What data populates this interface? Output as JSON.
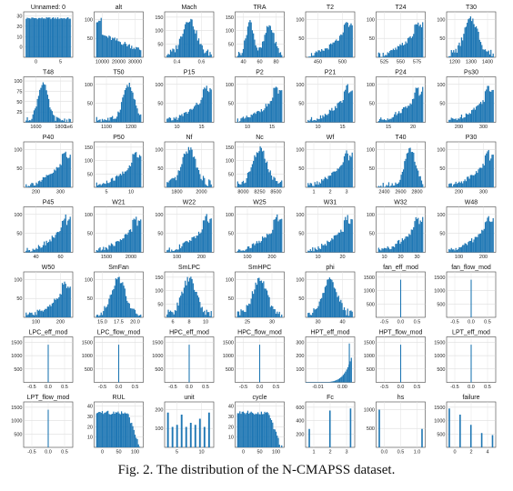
{
  "figure": {
    "caption": "Fig. 2. The distribution of the N-CMAPSS dataset.",
    "bar_color": "#1f77b4",
    "grid_on": true
  },
  "chart_data": [
    {
      "type": "bar",
      "title": "Unnamed: 0",
      "xticks": [
        "0",
        "5"
      ],
      "yticks": [
        "0",
        "10",
        "20",
        "30"
      ],
      "profile": "uniform"
    },
    {
      "type": "bar",
      "title": "alt",
      "xticks": [
        "10000",
        "20000",
        "30000"
      ],
      "yticks": [
        "50",
        "100"
      ],
      "profile": "decreasing"
    },
    {
      "type": "bar",
      "title": "Mach",
      "xticks": [
        "0.4",
        "0.6"
      ],
      "yticks": [
        "50",
        "100",
        "150"
      ],
      "profile": "mound"
    },
    {
      "type": "bar",
      "title": "TRA",
      "xticks": [
        "40",
        "60",
        "80"
      ],
      "yticks": [
        "50",
        "100",
        "150"
      ],
      "profile": "bimodal"
    },
    {
      "type": "bar",
      "title": "T2",
      "xticks": [
        "450",
        "500"
      ],
      "yticks": [
        "50",
        "100"
      ],
      "profile": "right_ramp"
    },
    {
      "type": "bar",
      "title": "T24",
      "xticks": [
        "525",
        "550",
        "575"
      ],
      "yticks": [
        "50",
        "100"
      ],
      "profile": "right_ramp"
    },
    {
      "type": "bar",
      "title": "T30",
      "xticks": [
        "1200",
        "1300",
        "1400"
      ],
      "yticks": [
        "50",
        "100"
      ],
      "profile": "mound"
    },
    {
      "type": "bar",
      "title": "T48",
      "sub": "1e6",
      "xticks": [
        "1600",
        "1800"
      ],
      "yticks": [
        "25",
        "50",
        "75",
        "100"
      ],
      "profile": "left_skew_peak"
    },
    {
      "type": "bar",
      "title": "T50",
      "xticks": [
        "1100",
        "1200"
      ],
      "yticks": [
        "50",
        "100"
      ],
      "profile": "right_skew"
    },
    {
      "type": "bar",
      "title": "P15",
      "xticks": [
        "10",
        "15"
      ],
      "yticks": [
        "50",
        "100"
      ],
      "profile": "right_ramp"
    },
    {
      "type": "bar",
      "title": "P2",
      "xticks": [
        "10",
        "15"
      ],
      "yticks": [
        "50",
        "100"
      ],
      "profile": "right_ramp"
    },
    {
      "type": "bar",
      "title": "P21",
      "xticks": [
        "10",
        "15"
      ],
      "yticks": [
        "50",
        "100"
      ],
      "profile": "right_ramp"
    },
    {
      "type": "bar",
      "title": "P24",
      "xticks": [
        "15",
        "20"
      ],
      "yticks": [
        "50",
        "100"
      ],
      "profile": "right_ramp"
    },
    {
      "type": "bar",
      "title": "Ps30",
      "xticks": [
        "200",
        "300"
      ],
      "yticks": [
        "50",
        "100"
      ],
      "profile": "right_ramp"
    },
    {
      "type": "bar",
      "title": "P40",
      "xticks": [
        "200",
        "300"
      ],
      "yticks": [
        "50",
        "100"
      ],
      "profile": "right_ramp"
    },
    {
      "type": "bar",
      "title": "P50",
      "xticks": [
        "5",
        "10"
      ],
      "yticks": [
        "50",
        "100",
        "150"
      ],
      "profile": "right_ramp"
    },
    {
      "type": "bar",
      "title": "Nf",
      "xticks": [
        "1800",
        "2000"
      ],
      "yticks": [
        "50",
        "100"
      ],
      "profile": "mound"
    },
    {
      "type": "bar",
      "title": "Nc",
      "xticks": [
        "8000",
        "8250",
        "8500"
      ],
      "yticks": [
        "50",
        "100",
        "150"
      ],
      "profile": "mound"
    },
    {
      "type": "bar",
      "title": "Wf",
      "xticks": [
        "1",
        "2",
        "3"
      ],
      "yticks": [
        "50",
        "100"
      ],
      "profile": "right_ramp"
    },
    {
      "type": "bar",
      "title": "T40",
      "xticks": [
        "2400",
        "2600",
        "2800"
      ],
      "yticks": [
        "50",
        "100"
      ],
      "profile": "right_skew"
    },
    {
      "type": "bar",
      "title": "P30",
      "xticks": [
        "200",
        "300"
      ],
      "yticks": [
        "50",
        "100"
      ],
      "profile": "right_ramp"
    },
    {
      "type": "bar",
      "title": "P45",
      "xticks": [
        "40",
        "60"
      ],
      "yticks": [
        "50",
        "100"
      ],
      "profile": "right_ramp"
    },
    {
      "type": "bar",
      "title": "W21",
      "xticks": [
        "1500",
        "2000"
      ],
      "yticks": [
        "50",
        "100"
      ],
      "profile": "right_ramp"
    },
    {
      "type": "bar",
      "title": "W22",
      "xticks": [
        "100",
        "200"
      ],
      "yticks": [
        "50",
        "100"
      ],
      "profile": "right_ramp"
    },
    {
      "type": "bar",
      "title": "W25",
      "xticks": [
        "100",
        "200"
      ],
      "yticks": [
        "50",
        "100"
      ],
      "profile": "right_ramp"
    },
    {
      "type": "bar",
      "title": "W31",
      "xticks": [
        "10",
        "20"
      ],
      "yticks": [
        "50",
        "100"
      ],
      "profile": "right_ramp"
    },
    {
      "type": "bar",
      "title": "W32",
      "xticks": [
        "10",
        "20",
        "30"
      ],
      "yticks": [
        "50",
        "100"
      ],
      "profile": "right_ramp"
    },
    {
      "type": "bar",
      "title": "W48",
      "xticks": [
        "100",
        "200"
      ],
      "yticks": [
        "50",
        "100"
      ],
      "profile": "right_ramp"
    },
    {
      "type": "bar",
      "title": "W50",
      "xticks": [
        "100",
        "200"
      ],
      "yticks": [
        "50",
        "100"
      ],
      "profile": "right_ramp"
    },
    {
      "type": "bar",
      "title": "SmFan",
      "xticks": [
        "15.0",
        "17.5",
        "20.0"
      ],
      "yticks": [
        "50",
        "100"
      ],
      "profile": "mound"
    },
    {
      "type": "bar",
      "title": "SmLPC",
      "xticks": [
        "6",
        "8",
        "10"
      ],
      "yticks": [
        "50",
        "100",
        "150"
      ],
      "profile": "mound"
    },
    {
      "type": "bar",
      "title": "SmHPC",
      "xticks": [
        "25",
        "30"
      ],
      "yticks": [
        "50",
        "100"
      ],
      "profile": "mound"
    },
    {
      "type": "bar",
      "title": "phi",
      "xticks": [
        "30",
        "40"
      ],
      "yticks": [
        "50",
        "100"
      ],
      "profile": "mound"
    },
    {
      "type": "bar",
      "title": "fan_eff_mod",
      "xticks": [
        "-0.5",
        "0.0",
        "0.5"
      ],
      "yticks": [
        "500",
        "1000",
        "1500"
      ],
      "profile": "spike"
    },
    {
      "type": "bar",
      "title": "fan_flow_mod",
      "xticks": [
        "-0.5",
        "0.0",
        "0.5"
      ],
      "yticks": [
        "500",
        "1000",
        "1500"
      ],
      "profile": "spike"
    },
    {
      "type": "bar",
      "title": "LPC_eff_mod",
      "xticks": [
        "-0.5",
        "0.0",
        "0.5"
      ],
      "yticks": [
        "500",
        "1000",
        "1500"
      ],
      "profile": "spike"
    },
    {
      "type": "bar",
      "title": "LPC_flow_mod",
      "xticks": [
        "-0.5",
        "0.0",
        "0.5"
      ],
      "yticks": [
        "500",
        "1000",
        "1500"
      ],
      "profile": "spike"
    },
    {
      "type": "bar",
      "title": "HPC_eff_mod",
      "xticks": [
        "-0.5",
        "0.0",
        "0.5"
      ],
      "yticks": [
        "500",
        "1000",
        "1500"
      ],
      "profile": "spike"
    },
    {
      "type": "bar",
      "title": "HPC_flow_mod",
      "xticks": [
        "-0.5",
        "0.0",
        "0.5"
      ],
      "yticks": [
        "500",
        "1000",
        "1500"
      ],
      "profile": "spike"
    },
    {
      "type": "bar",
      "title": "HPT_eff_mod",
      "xticks": [
        "-0.01",
        "0.00"
      ],
      "yticks": [
        "100",
        "200",
        "300"
      ],
      "profile": "right_spike"
    },
    {
      "type": "bar",
      "title": "HPT_flow_mod",
      "xticks": [
        "-0.5",
        "0.0",
        "0.5"
      ],
      "yticks": [
        "500",
        "1000",
        "1500"
      ],
      "profile": "spike"
    },
    {
      "type": "bar",
      "title": "LPT_eff_mod",
      "xticks": [
        "-0.5",
        "0.0",
        "0.5"
      ],
      "yticks": [
        "500",
        "1000",
        "1500"
      ],
      "profile": "spike"
    },
    {
      "type": "bar",
      "title": "LPT_flow_mod",
      "xticks": [
        "-0.5",
        "0.0",
        "0.5"
      ],
      "yticks": [
        "500",
        "1000",
        "1500"
      ],
      "profile": "spike"
    },
    {
      "type": "bar",
      "title": "RUL",
      "xticks": [
        "0",
        "50",
        "100"
      ],
      "yticks": [
        "10",
        "20",
        "30",
        "40"
      ],
      "profile": "plateau_decline"
    },
    {
      "type": "bar",
      "title": "unit",
      "xticks": [
        "5",
        "10"
      ],
      "yticks": [
        "100",
        "200"
      ],
      "profile": "discrete_units"
    },
    {
      "type": "bar",
      "title": "cycle",
      "xticks": [
        "0",
        "50",
        "100"
      ],
      "yticks": [
        "10",
        "20",
        "30",
        "40"
      ],
      "profile": "plateau_decline"
    },
    {
      "type": "bar",
      "title": "Fc",
      "xticks": [
        "1",
        "2",
        "3"
      ],
      "yticks": [
        "200",
        "400",
        "600"
      ],
      "profile": "three_bars"
    },
    {
      "type": "bar",
      "title": "hs",
      "xticks": [
        "0.0",
        "0.5",
        "1.0"
      ],
      "yticks": [
        "500",
        "1000"
      ],
      "profile": "two_bars"
    },
    {
      "type": "bar",
      "title": "failure",
      "xticks": [
        "0",
        "2",
        "4"
      ],
      "yticks": [
        "500",
        "1000",
        "1500"
      ],
      "profile": "five_bars"
    }
  ]
}
